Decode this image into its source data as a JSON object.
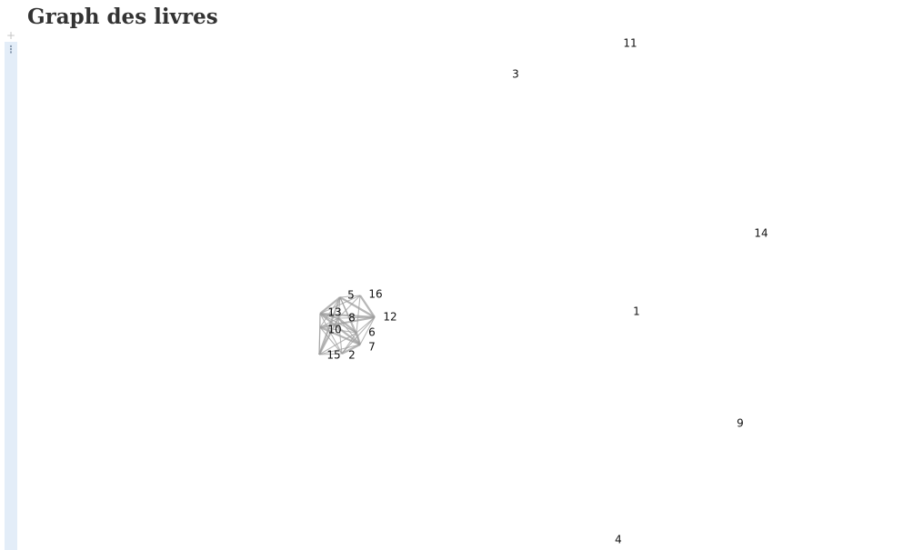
{
  "page": {
    "title": "Graph des livres"
  },
  "cell": {
    "add_glyph": "+",
    "menu_glyph": "⋮"
  },
  "graph": {
    "nodes": [
      {
        "id": "11",
        "label": "11"
      },
      {
        "id": "3",
        "label": "3"
      },
      {
        "id": "14",
        "label": "14"
      },
      {
        "id": "5",
        "label": "5"
      },
      {
        "id": "16",
        "label": "16"
      },
      {
        "id": "13",
        "label": "13"
      },
      {
        "id": "8",
        "label": "8"
      },
      {
        "id": "12",
        "label": "12"
      },
      {
        "id": "1",
        "label": "1"
      },
      {
        "id": "10",
        "label": "10"
      },
      {
        "id": "6",
        "label": "6"
      },
      {
        "id": "7",
        "label": "7"
      },
      {
        "id": "15",
        "label": "15"
      },
      {
        "id": "2",
        "label": "2"
      },
      {
        "id": "9",
        "label": "9"
      },
      {
        "id": "4",
        "label": "4"
      }
    ],
    "edges": [
      [
        "5",
        "13"
      ],
      [
        "5",
        "8"
      ],
      [
        "5",
        "16"
      ],
      [
        "5",
        "12"
      ],
      [
        "5",
        "10"
      ],
      [
        "5",
        "6"
      ],
      [
        "5",
        "15"
      ],
      [
        "5",
        "7"
      ],
      [
        "16",
        "8"
      ],
      [
        "16",
        "12"
      ],
      [
        "16",
        "13"
      ],
      [
        "16",
        "6"
      ],
      [
        "13",
        "8"
      ],
      [
        "13",
        "10"
      ],
      [
        "13",
        "15"
      ],
      [
        "13",
        "12"
      ],
      [
        "13",
        "6"
      ],
      [
        "13",
        "2"
      ],
      [
        "13",
        "7"
      ],
      [
        "8",
        "12"
      ],
      [
        "8",
        "10"
      ],
      [
        "8",
        "6"
      ],
      [
        "8",
        "7"
      ],
      [
        "8",
        "2"
      ],
      [
        "8",
        "15"
      ],
      [
        "12",
        "6"
      ],
      [
        "12",
        "7"
      ],
      [
        "12",
        "10"
      ],
      [
        "12",
        "2"
      ],
      [
        "10",
        "6"
      ],
      [
        "10",
        "7"
      ],
      [
        "10",
        "15"
      ],
      [
        "10",
        "2"
      ],
      [
        "6",
        "7"
      ],
      [
        "6",
        "2"
      ],
      [
        "6",
        "15"
      ],
      [
        "7",
        "2"
      ],
      [
        "7",
        "15"
      ],
      [
        "15",
        "2"
      ]
    ],
    "edge_color": "#9e9e9e"
  }
}
